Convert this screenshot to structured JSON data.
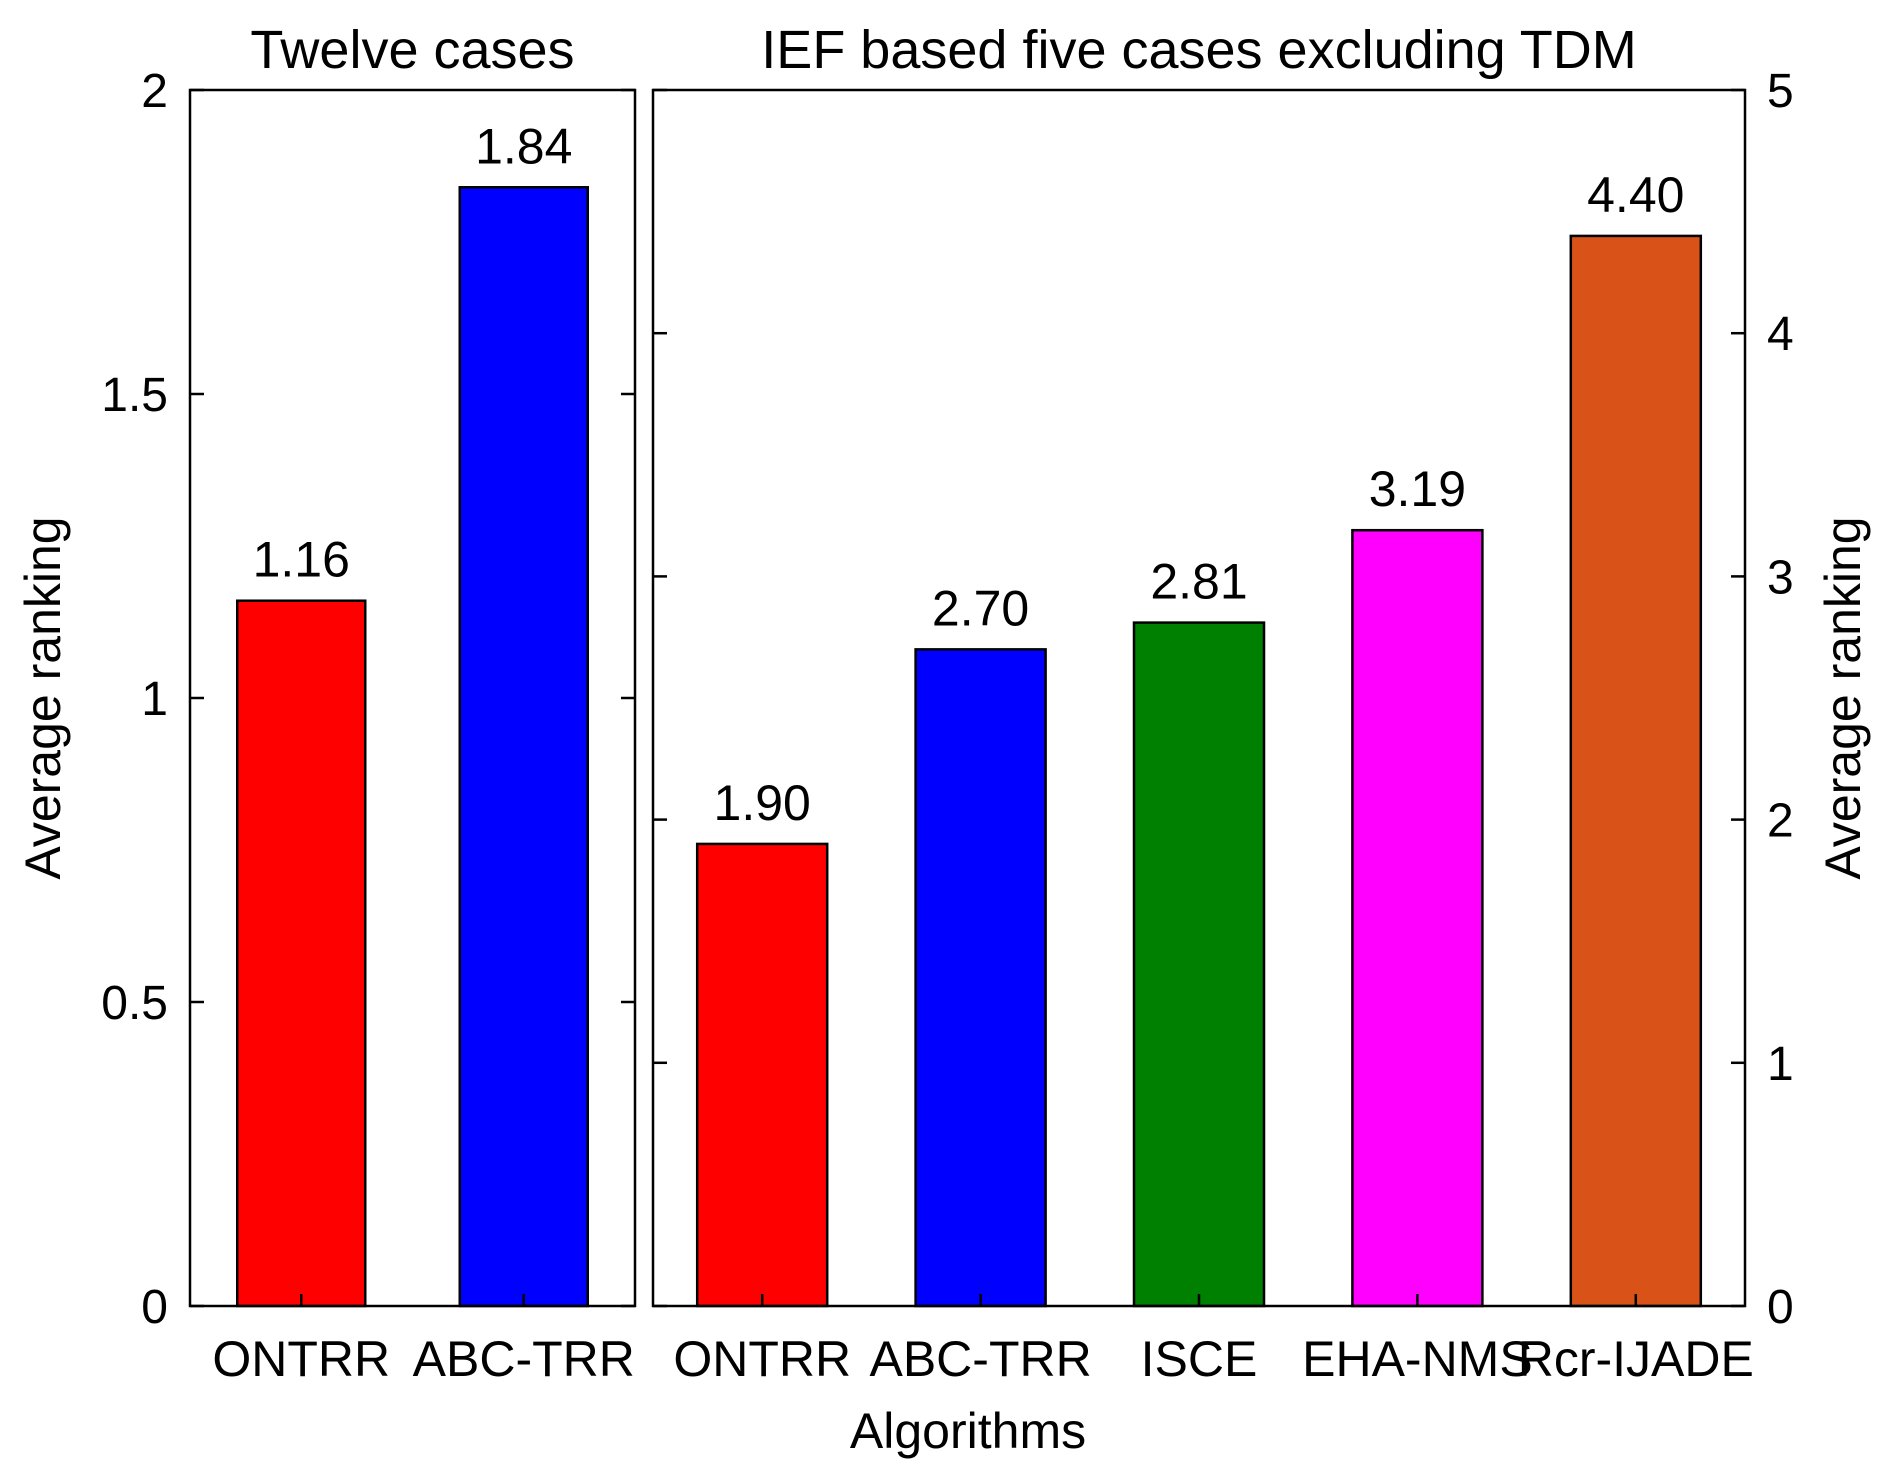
{
  "chart_data": [
    {
      "type": "bar",
      "title": "Twelve cases",
      "categories": [
        "ONTRR",
        "ABC-TRR"
      ],
      "values": [
        1.16,
        1.84
      ],
      "value_labels": [
        "1.16",
        "1.84"
      ],
      "colors": [
        "#ff0000",
        "#0000ff"
      ],
      "ylabel": "Average ranking",
      "ylim": [
        0,
        2
      ],
      "yticks": [
        0,
        0.5,
        1,
        1.5,
        2
      ],
      "ytick_labels": [
        "0",
        "0.5",
        "1",
        "1.5",
        "2"
      ],
      "yaxis_side": "left"
    },
    {
      "type": "bar",
      "title": "IEF based five cases excluding TDM",
      "categories": [
        "ONTRR",
        "ABC-TRR",
        "ISCE",
        "EHA-NMS",
        "Rcr-IJADE"
      ],
      "values": [
        1.9,
        2.7,
        2.81,
        3.19,
        4.4
      ],
      "value_labels": [
        "1.90",
        "2.70",
        "2.81",
        "3.19",
        "4.40"
      ],
      "colors": [
        "#ff0000",
        "#0000ff",
        "#008000",
        "#ff00ff",
        "#d95319"
      ],
      "ylabel": "Average ranking",
      "ylim": [
        0,
        5
      ],
      "yticks": [
        0,
        1,
        2,
        3,
        4,
        5
      ],
      "ytick_labels": [
        "0",
        "1",
        "2",
        "3",
        "4",
        "5"
      ],
      "yaxis_side": "right"
    }
  ],
  "xlabel": "Algorithms"
}
